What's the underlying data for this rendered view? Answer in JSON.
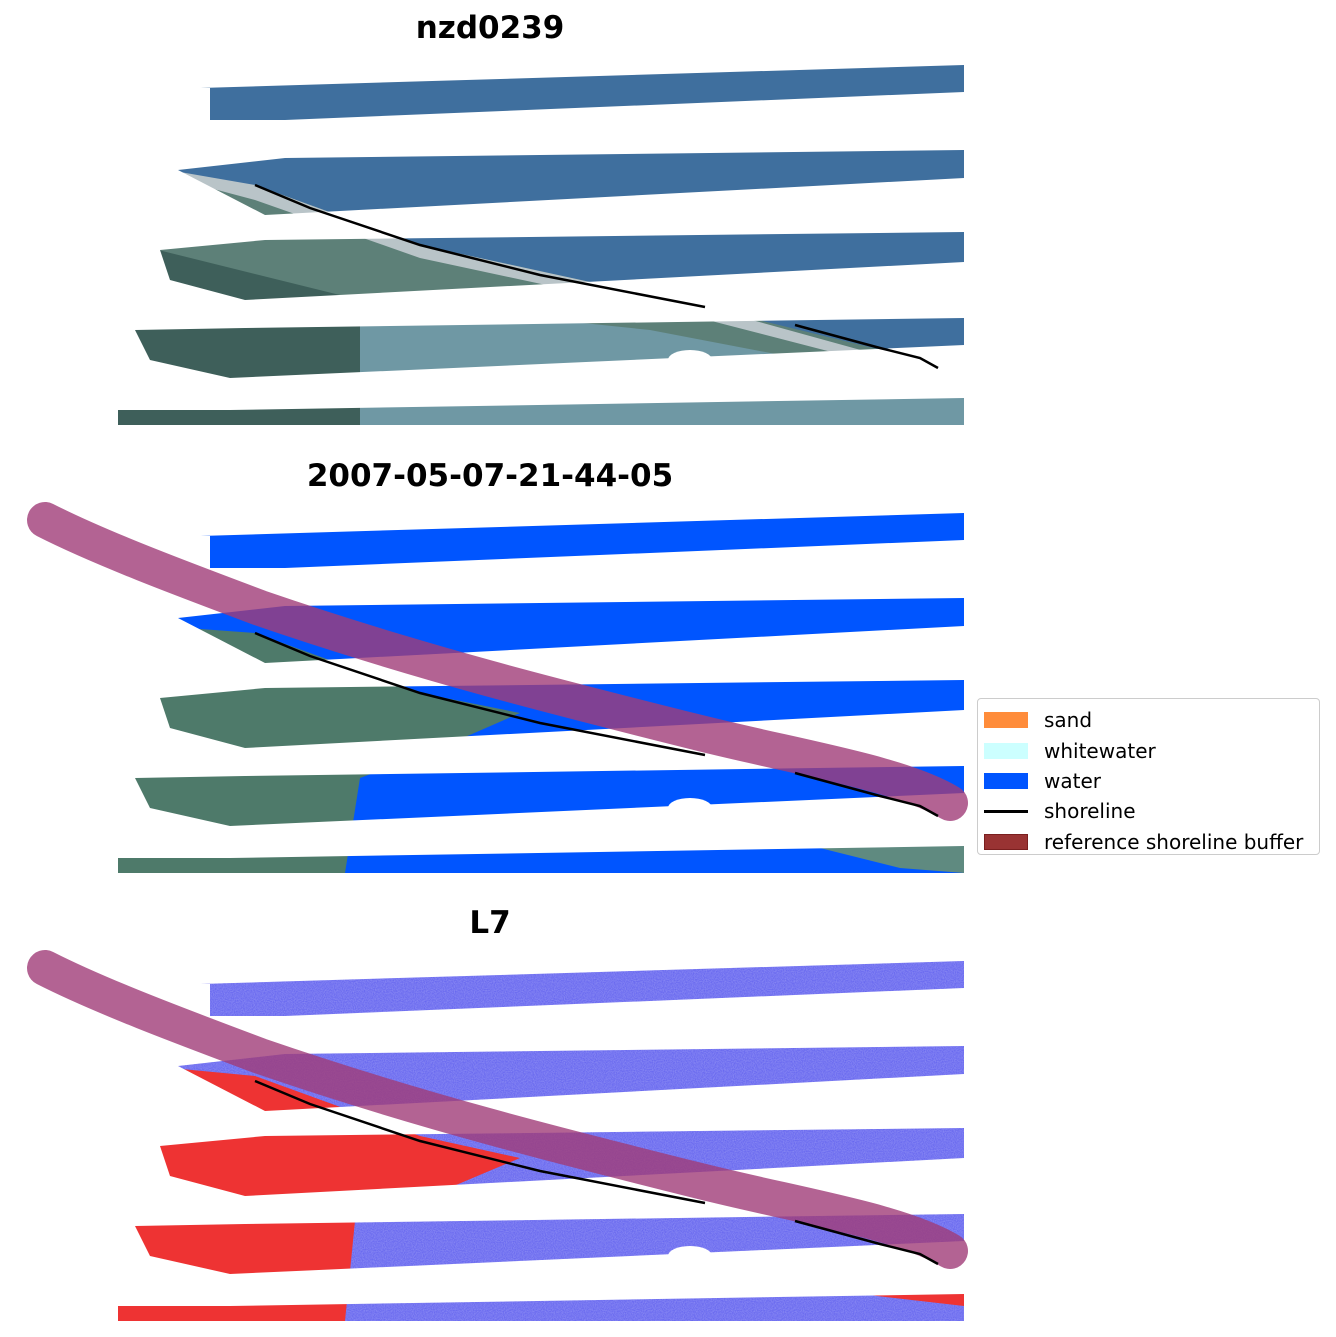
{
  "panels": [
    {
      "title": "nzd0239",
      "kind": "rgb"
    },
    {
      "title": "2007-05-07-21-44-05",
      "kind": "classified"
    },
    {
      "title": "L7",
      "kind": "index"
    }
  ],
  "legend": {
    "items": [
      {
        "label": "sand",
        "color": "#ff8c3a",
        "type": "patch"
      },
      {
        "label": "whitewater",
        "color": "#ccffff",
        "type": "patch"
      },
      {
        "label": "water",
        "color": "#0055ff",
        "type": "patch"
      },
      {
        "label": "shoreline",
        "color": "#000000",
        "type": "line"
      },
      {
        "label": "reference shoreline buffer",
        "color": "#993333",
        "type": "patch"
      }
    ]
  }
}
